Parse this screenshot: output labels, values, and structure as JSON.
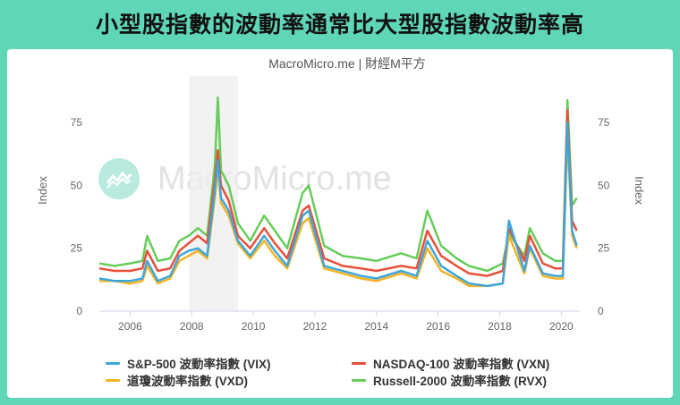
{
  "title": "小型股指數的波動率通常比大型股指數波動率高",
  "source": "MacroMicro.me | 財經M平方",
  "watermark": "MacroMicro.me",
  "colors": {
    "banner": "#5fd6b8",
    "VIX": "#3ea6dc",
    "VXN": "#e8503a",
    "VXD": "#f5b324",
    "RVX": "#66cc5a",
    "shade": "#eeeeee"
  },
  "chart_data": {
    "type": "line",
    "xlabel": "",
    "ylabel_left": "Index",
    "ylabel_right": "Index",
    "ylim": [
      0,
      90
    ],
    "xlim": [
      2005.0,
      2020.6
    ],
    "x_ticks": [
      "2006",
      "2008",
      "2010",
      "2012",
      "2014",
      "2016",
      "2018",
      "2020"
    ],
    "y_ticks": [
      "0",
      "25",
      "50",
      "75"
    ],
    "y_ticks_right": [
      "0",
      "25",
      "50",
      "75"
    ],
    "shaded_region": [
      2007.92,
      2009.5
    ],
    "grid": false,
    "legend_position": "bottom",
    "x": [
      2005.0,
      2005.5,
      2006.0,
      2006.4,
      2006.55,
      2006.9,
      2007.3,
      2007.6,
      2007.9,
      2008.2,
      2008.5,
      2008.75,
      2008.85,
      2008.95,
      2009.2,
      2009.5,
      2009.9,
      2010.35,
      2010.7,
      2011.1,
      2011.6,
      2011.8,
      2012.3,
      2012.9,
      2013.5,
      2014.0,
      2014.8,
      2015.3,
      2015.65,
      2016.1,
      2016.6,
      2017.0,
      2017.6,
      2018.1,
      2018.3,
      2018.8,
      2018.98,
      2019.4,
      2019.8,
      2020.05,
      2020.2,
      2020.35,
      2020.5
    ],
    "series": [
      {
        "name": "S&P-500 波動率指數 (VIX)",
        "color": "#3ea6dc",
        "values": [
          13,
          12,
          12,
          13,
          20,
          12,
          14,
          22,
          24,
          25,
          22,
          48,
          60,
          45,
          40,
          28,
          22,
          30,
          24,
          18,
          38,
          40,
          18,
          16,
          14,
          13,
          16,
          14,
          28,
          18,
          14,
          11,
          10,
          11,
          36,
          16,
          26,
          15,
          14,
          14,
          75,
          32,
          26
        ]
      },
      {
        "name": "NASDAQ-100 波動率指數 (VXN)",
        "color": "#e8503a",
        "values": [
          17,
          16,
          16,
          17,
          24,
          16,
          17,
          24,
          27,
          30,
          27,
          52,
          64,
          50,
          44,
          30,
          25,
          33,
          27,
          21,
          40,
          42,
          21,
          18,
          17,
          16,
          18,
          17,
          32,
          22,
          18,
          15,
          14,
          16,
          33,
          20,
          30,
          19,
          17,
          17,
          80,
          36,
          32
        ]
      },
      {
        "name": "道瓊波動率指數 (VXD)",
        "color": "#f5b324",
        "values": [
          12,
          12,
          11,
          12,
          18,
          11,
          13,
          20,
          22,
          24,
          21,
          45,
          57,
          43,
          38,
          27,
          21,
          28,
          22,
          17,
          35,
          37,
          17,
          15,
          13,
          12,
          15,
          13,
          25,
          16,
          13,
          10,
          10,
          11,
          30,
          15,
          25,
          14,
          13,
          13,
          70,
          30,
          25
        ]
      },
      {
        "name": "Russell-2000 波動率指數 (RVX)",
        "color": "#66cc5a",
        "values": [
          19,
          18,
          19,
          20,
          30,
          20,
          21,
          28,
          30,
          33,
          30,
          58,
          85,
          56,
          50,
          35,
          28,
          38,
          32,
          25,
          47,
          50,
          26,
          22,
          21,
          20,
          23,
          21,
          40,
          26,
          21,
          18,
          16,
          19,
          31,
          22,
          33,
          23,
          20,
          20,
          84,
          42,
          45
        ]
      }
    ]
  }
}
